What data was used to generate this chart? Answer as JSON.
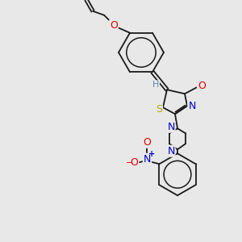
{
  "background_color": "#e8e8e8",
  "bond_color": "#1a1a1a",
  "atom_colors": {
    "O": "#e00000",
    "N": "#0000cc",
    "S": "#aaaa00",
    "H": "#5588aa"
  },
  "font_size": 8,
  "line_width": 1.3,
  "dpi": 100
}
